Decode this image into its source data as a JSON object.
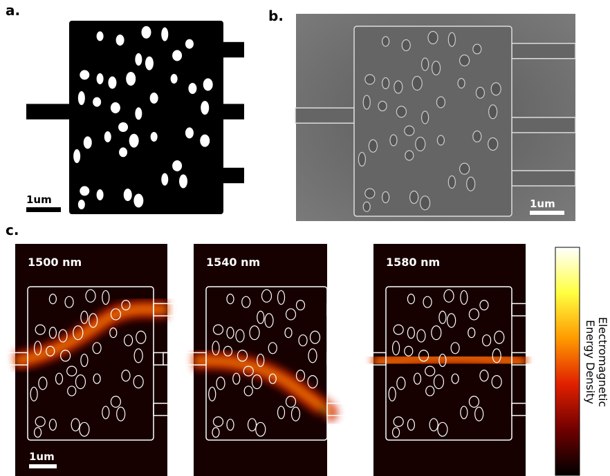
{
  "panels": {
    "a": {
      "label": "a.",
      "scale_bar": "1um"
    },
    "b": {
      "label": "b.",
      "scale_bar": "1um"
    },
    "c": {
      "label": "c.",
      "scale_bar": "1um",
      "wavelengths": [
        "1500 nm",
        "1540 nm",
        "1580 nm"
      ],
      "colorbar_label": [
        "Electromagnetic",
        "Energy Density"
      ]
    }
  }
}
